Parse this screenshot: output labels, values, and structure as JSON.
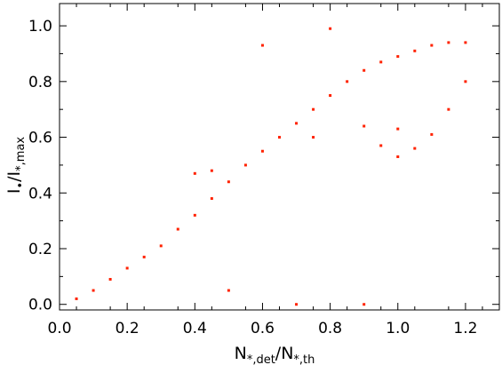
{
  "chart_data": {
    "type": "scatter",
    "title": "",
    "xlabel": {
      "main": "N",
      "sub1": "*,det",
      "slash": "/N",
      "sub2": "*,th"
    },
    "ylabel": {
      "main": "I",
      "sub1": "•",
      "slash": "/I",
      "sub2": "*,max"
    },
    "xlim": [
      0.0,
      1.3
    ],
    "ylim": [
      -0.02,
      1.08
    ],
    "xticks": [
      0.0,
      0.2,
      0.4,
      0.6,
      0.8,
      1.0,
      1.2
    ],
    "xtick_labels": [
      "0.0",
      "0.2",
      "0.4",
      "0.6",
      "0.8",
      "1.0",
      "1.2"
    ],
    "yticks": [
      0.0,
      0.2,
      0.4,
      0.6,
      0.8,
      1.0
    ],
    "ytick_labels": [
      "0.0",
      "0.2",
      "0.4",
      "0.6",
      "0.8",
      "1.0"
    ],
    "grid": false,
    "point_color": "#ff2200",
    "series": [
      {
        "values": [
          {
            "x": 0.05,
            "y": 0.02
          },
          {
            "x": 0.1,
            "y": 0.05
          },
          {
            "x": 0.15,
            "y": 0.09
          },
          {
            "x": 0.2,
            "y": 0.13
          },
          {
            "x": 0.25,
            "y": 0.17
          },
          {
            "x": 0.3,
            "y": 0.21
          },
          {
            "x": 0.35,
            "y": 0.27
          },
          {
            "x": 0.4,
            "y": 0.32
          },
          {
            "x": 0.45,
            "y": 0.38
          },
          {
            "x": 0.5,
            "y": 0.44
          },
          {
            "x": 0.55,
            "y": 0.5
          },
          {
            "x": 0.6,
            "y": 0.55
          },
          {
            "x": 0.65,
            "y": 0.6
          },
          {
            "x": 0.7,
            "y": 0.65
          },
          {
            "x": 0.75,
            "y": 0.7
          },
          {
            "x": 0.8,
            "y": 0.75
          },
          {
            "x": 0.85,
            "y": 0.8
          },
          {
            "x": 0.9,
            "y": 0.84
          },
          {
            "x": 0.95,
            "y": 0.87
          },
          {
            "x": 1.0,
            "y": 0.89
          },
          {
            "x": 1.05,
            "y": 0.91
          },
          {
            "x": 1.1,
            "y": 0.93
          },
          {
            "x": 1.15,
            "y": 0.94
          },
          {
            "x": 1.2,
            "y": 0.94
          },
          {
            "x": 0.4,
            "y": 0.47
          },
          {
            "x": 0.45,
            "y": 0.48
          },
          {
            "x": 0.9,
            "y": 0.64
          },
          {
            "x": 1.0,
            "y": 0.63
          },
          {
            "x": 1.1,
            "y": 0.61
          },
          {
            "x": 0.95,
            "y": 0.57
          },
          {
            "x": 1.05,
            "y": 0.56
          },
          {
            "x": 0.8,
            "y": 0.99
          },
          {
            "x": 0.6,
            "y": 0.93
          },
          {
            "x": 0.7,
            "y": 0.0
          },
          {
            "x": 0.9,
            "y": 0.0
          },
          {
            "x": 1.0,
            "y": 0.53
          },
          {
            "x": 1.15,
            "y": 0.7
          },
          {
            "x": 0.5,
            "y": 0.05
          },
          {
            "x": 0.75,
            "y": 0.6
          },
          {
            "x": 1.2,
            "y": 0.8
          }
        ]
      }
    ]
  }
}
